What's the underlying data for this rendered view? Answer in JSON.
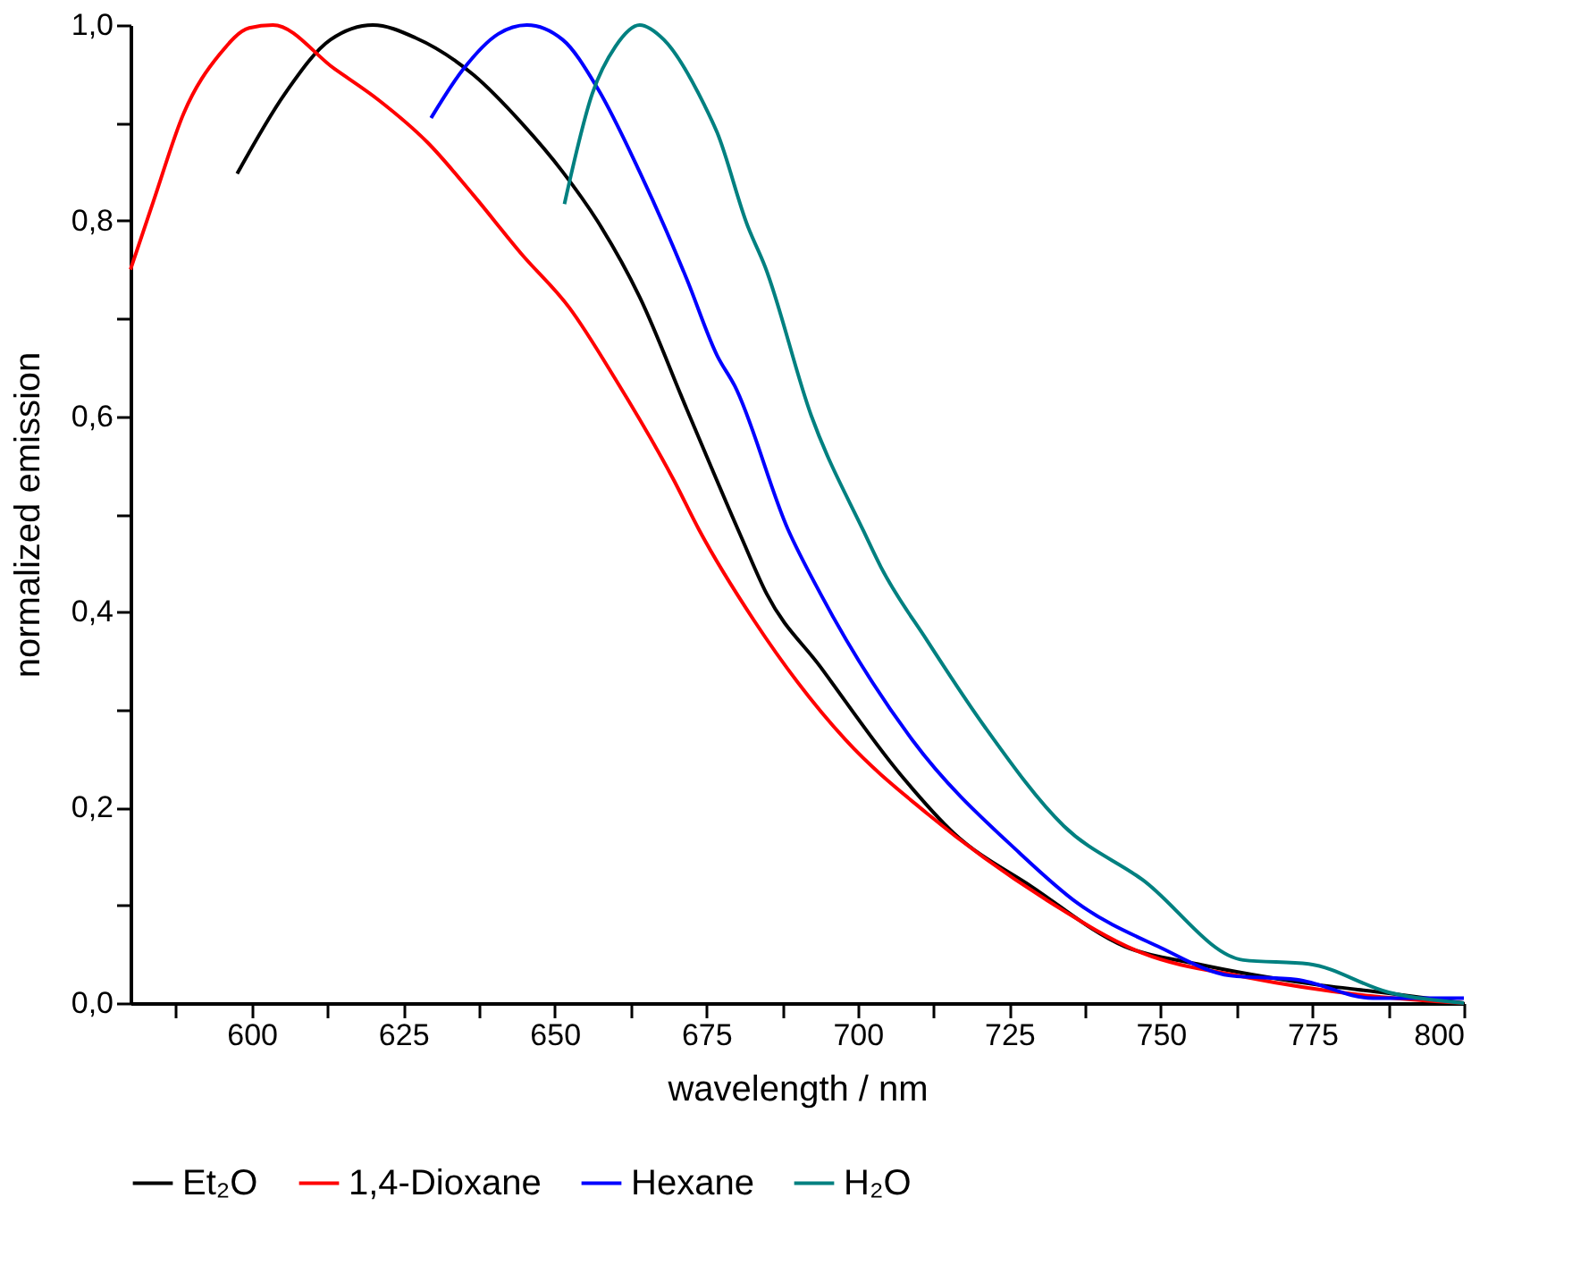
{
  "chart_data": {
    "type": "line",
    "xlabel": "wavelength / nm",
    "ylabel": "normalized emission",
    "xlim": [
      580,
      800
    ],
    "ylim": [
      0,
      1.0
    ],
    "xticks": [
      {
        "value": 587.5,
        "label": null
      },
      600,
      {
        "value": 612.5,
        "label": null
      },
      625,
      {
        "value": 637.5,
        "label": null
      },
      650,
      {
        "value": 662.5,
        "label": null
      },
      675,
      {
        "value": 687.5,
        "label": null
      },
      700,
      {
        "value": 712.5,
        "label": null
      },
      725,
      {
        "value": 737.5,
        "label": null
      },
      750,
      {
        "value": 762.5,
        "label": null
      },
      775,
      {
        "value": 787.5,
        "label": null
      },
      800
    ],
    "yticks": [
      {
        "value": 0,
        "label": "0,0"
      },
      {
        "value": 0.1,
        "label": null
      },
      {
        "value": 0.2,
        "label": "0,2"
      },
      {
        "value": 0.3,
        "label": null
      },
      {
        "value": 0.4,
        "label": "0,4"
      },
      {
        "value": 0.5,
        "label": null
      },
      {
        "value": 0.6,
        "label": "0,6"
      },
      {
        "value": 0.7,
        "label": null
      },
      {
        "value": 0.8,
        "label": "0,8"
      },
      {
        "value": 0.9,
        "label": null
      },
      {
        "value": 1.0,
        "label": "1,0"
      }
    ],
    "grid": false,
    "legend": "bottom",
    "line_style": "solid",
    "marker": "none",
    "series": [
      {
        "name": "Et₂O",
        "color": "#000000",
        "x": [
          597.6,
          605.5,
          613,
          620,
          627,
          636.6,
          644.5,
          651.3,
          657,
          664,
          671.8,
          680.6,
          685,
          693.8,
          707,
          715.8,
          728.7,
          744,
          756,
          774.4,
          787.6,
          800
        ],
        "values": [
          0.848,
          0.93,
          0.985,
          1.0,
          0.987,
          0.949,
          0.9,
          0.85,
          0.8,
          0.722,
          0.607,
          0.479,
          0.418,
          0.344,
          0.234,
          0.174,
          0.119,
          0.058,
          0.04,
          0.02,
          0.01,
          0.0
        ]
      },
      {
        "name": "1,4-Dioxane",
        "color": "#ff0000",
        "x": [
          580,
          583.8,
          588.8,
          594.7,
          599.6,
          603.5,
          613.7,
          621,
          629,
          636.6,
          644.5,
          652.4,
          660,
          669.7,
          673.8,
          682.9,
          698,
          711.4,
          731,
          747,
          763.6,
          785,
          800
        ],
        "values": [
          0.75,
          0.82,
          0.91,
          0.97,
          0.997,
          1.0,
          0.955,
          0.923,
          0.88,
          0.826,
          0.766,
          0.711,
          0.638,
          0.534,
          0.484,
          0.391,
          0.269,
          0.194,
          0.106,
          0.051,
          0.027,
          0.007,
          0.0
        ]
      },
      {
        "name": "Hexane",
        "color": "#0000ff",
        "x": [
          629.6,
          634.8,
          640.7,
          645.4,
          651.3,
          657,
          664,
          671.8,
          676.8,
          679.7,
          688.5,
          693.8,
          709,
          726.6,
          736.3,
          749.5,
          761.5,
          772.4,
          785,
          800
        ],
        "values": [
          0.905,
          0.954,
          0.991,
          1.0,
          0.985,
          0.936,
          0.85,
          0.74,
          0.662,
          0.631,
          0.484,
          0.419,
          0.269,
          0.154,
          0.102,
          0.058,
          0.028,
          0.024,
          0.005,
          0.005
        ]
      },
      {
        "name": "H₂O",
        "color": "#008080",
        "x": [
          651.6,
          656.2,
          660,
          664,
          668,
          674.7,
          676.8,
          681.8,
          684.7,
          692.3,
          701,
          703.8,
          711.4,
          721,
          734,
          747,
          763.6,
          774.4,
          787.6,
          800
        ],
        "values": [
          0.817,
          0.93,
          0.978,
          1.0,
          0.985,
          0.918,
          0.89,
          0.795,
          0.753,
          0.601,
          0.482,
          0.446,
          0.371,
          0.282,
          0.181,
          0.126,
          0.044,
          0.04,
          0.011,
          0.0
        ]
      }
    ]
  }
}
